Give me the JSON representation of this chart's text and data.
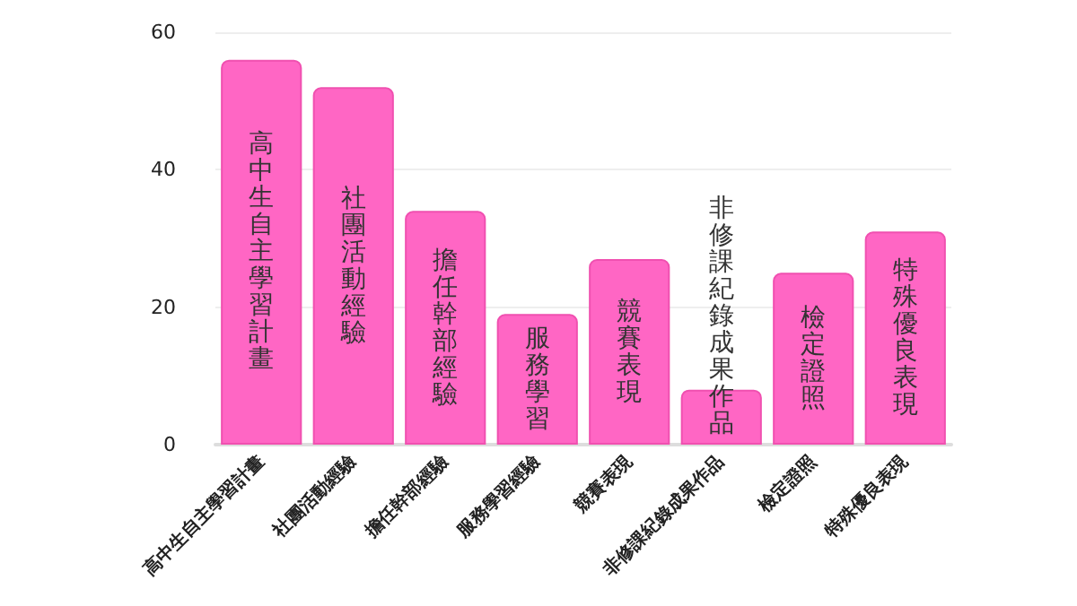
{
  "chart_data": {
    "type": "bar",
    "categories": [
      "高中生自主學習計畫",
      "社團活動經驗",
      "擔任幹部經驗",
      "服務學習經驗",
      "競賽表現",
      "非修課紀錄成果作品",
      "檢定證照",
      "特殊優良表現"
    ],
    "values": [
      56,
      52,
      34,
      19,
      27,
      8,
      25,
      31
    ],
    "value_labels": [
      "高中生自主學習計畫",
      "社團活動經驗",
      "擔任幹部經驗",
      "服務學習",
      "競賽表現",
      "非修課紀錄成果作品",
      "檢定證照",
      "特殊優良表現"
    ],
    "color": "#ff66c4",
    "ylim": [
      0,
      60
    ],
    "yticks": [
      0,
      20,
      40,
      60
    ],
    "grid": "y"
  }
}
